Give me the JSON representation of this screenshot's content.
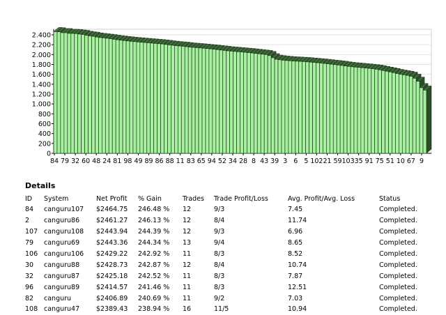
{
  "chart_data": {
    "type": "bar",
    "title": "",
    "xlabel": "",
    "ylabel": "",
    "ylim": [
      0,
      2400
    ],
    "yticks": [
      0,
      200,
      400,
      600,
      800,
      "1.000",
      "1.200",
      "1.400",
      "1.600",
      "1.800",
      "2.000",
      "2.200",
      "2.400"
    ],
    "ytick_labels": [
      "0",
      "200",
      "400",
      "600",
      "800",
      "1.000",
      "1.200",
      "1.400",
      "1.600",
      "1.800",
      "2.000",
      "2.200",
      "2.400"
    ],
    "xtick_labels": [
      "84",
      "79",
      "32",
      "60",
      "48",
      "24",
      "81",
      "98",
      "49",
      "89",
      "86",
      "88",
      "11",
      "83",
      "65",
      "94",
      "52",
      "34",
      "28",
      "8",
      "43",
      "39",
      "3",
      "6",
      "5",
      "102",
      "21",
      "59",
      "103",
      "35",
      "91",
      "75",
      "51",
      "10",
      "67",
      "9"
    ],
    "bar_color": "#a6f0a0",
    "grid": true,
    "values": [
      2464.75,
      2461.27,
      2443.94,
      2443.36,
      2429.22,
      2428.73,
      2425.18,
      2414.57,
      2406.89,
      2389.43,
      2378,
      2370,
      2355,
      2345,
      2338,
      2330,
      2322,
      2310,
      2300,
      2292,
      2284,
      2276,
      2268,
      2262,
      2255,
      2250,
      2244,
      2238,
      2232,
      2226,
      2220,
      2214,
      2205,
      2196,
      2188,
      2180,
      2174,
      2168,
      2160,
      2152,
      2146,
      2140,
      2134,
      2128,
      2122,
      2115,
      2108,
      2100,
      2092,
      2084,
      2076,
      2070,
      2064,
      2058,
      2052,
      2046,
      2040,
      2032,
      2024,
      2016,
      2008,
      2000,
      1980,
      1935,
      1905,
      1895,
      1886,
      1880,
      1875,
      1870,
      1866,
      1862,
      1858,
      1852,
      1846,
      1840,
      1834,
      1828,
      1820,
      1812,
      1804,
      1796,
      1788,
      1780,
      1770,
      1760,
      1752,
      1746,
      1740,
      1734,
      1728,
      1720,
      1712,
      1704,
      1690,
      1676,
      1662,
      1648,
      1634,
      1616,
      1602,
      1590,
      1578,
      1560,
      1520,
      1460,
      1330,
      1280
    ]
  },
  "details": {
    "title": "Details",
    "headers": [
      "ID",
      "System",
      "Net Profit",
      "% Gain",
      "Trades",
      "Trade Profit/Loss",
      "Avg. Profit/Avg. Loss",
      "Status"
    ],
    "rows": [
      [
        "84",
        "canguru107",
        "$2464.75",
        "246.48 %",
        "12",
        "9/3",
        "7.45",
        "Completed."
      ],
      [
        "2",
        "canguru86",
        "$2461.27",
        "246.13 %",
        "12",
        "8/4",
        "11.74",
        "Completed."
      ],
      [
        "107",
        "canguru108",
        "$2443.94",
        "244.39 %",
        "12",
        "9/3",
        "6.96",
        "Completed."
      ],
      [
        "79",
        "canguru69",
        "$2443.36",
        "244.34 %",
        "13",
        "9/4",
        "8.65",
        "Completed."
      ],
      [
        "106",
        "canguru106",
        "$2429.22",
        "242.92 %",
        "11",
        "8/3",
        "8.52",
        "Completed."
      ],
      [
        "30",
        "canguru88",
        "$2428.73",
        "242.87 %",
        "12",
        "8/4",
        "10.74",
        "Completed."
      ],
      [
        "32",
        "canguru87",
        "$2425.18",
        "242.52 %",
        "11",
        "8/3",
        "7.87",
        "Completed."
      ],
      [
        "96",
        "canguru89",
        "$2414.57",
        "241.46 %",
        "11",
        "8/3",
        "12.51",
        "Completed."
      ],
      [
        "82",
        "canguru",
        "$2406.89",
        "240.69 %",
        "11",
        "9/2",
        "7.03",
        "Completed."
      ],
      [
        "108",
        "canguru47",
        "$2389.43",
        "238.94 %",
        "16",
        "11/5",
        "10.94",
        "Completed."
      ]
    ]
  }
}
